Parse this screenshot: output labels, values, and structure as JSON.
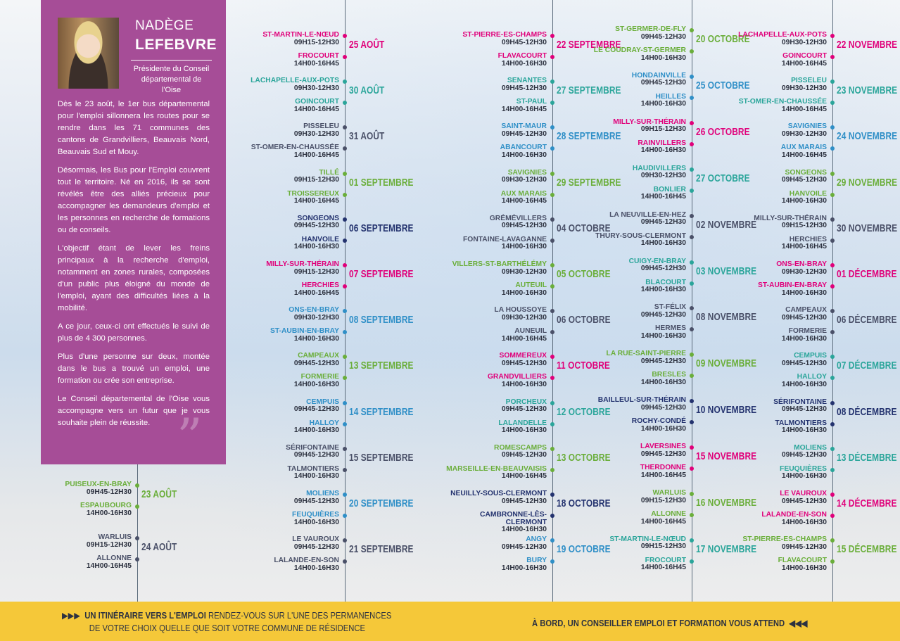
{
  "intro": {
    "first_name": "NADÈGE",
    "last_name": "LEFEBVRE",
    "role": "Présidente du Conseil départemental de l'Oise",
    "paragraphs": [
      "Dès le 23 août, le 1er bus départemental pour l'emploi sillonnera les routes pour se rendre dans les 71 communes des cantons de Grandvilliers, Beauvais Nord, Beauvais Sud et Mouy.",
      "Désormais, les Bus pour l'Emploi couvrent tout le territoire. Né en 2016, ils se sont révélés être des alliés précieux pour accompagner les demandeurs d'emploi et les personnes en recherche de formations ou de conseils.",
      "L'objectif étant de lever les freins principaux à la recherche d'emploi, notamment en zones rurales, composées d'un public plus éloigné du monde de l'emploi, ayant des difficultés liées à la mobilité.",
      "A ce jour, ceux-ci ont effectués le suivi de plus de 4 300 personnes.",
      "Plus d'une personne sur deux, montée dans le bus a trouvé un emploi, une formation ou crée son entreprise.",
      "Le Conseil départemental de l'Oise vous accompagne vers un futur que je vous souhaite plein de réussite."
    ],
    "quote_mark": "”"
  },
  "colors": {
    "pink": "#e0007a",
    "green": "#6aae3a",
    "teal": "#2aa59a",
    "blue": "#2f8fc7",
    "slate": "#4a5068",
    "navy": "#23326e",
    "purple": "#a64d97",
    "yellow": "#f5c839"
  },
  "columns": [
    {
      "entries": [
        {
          "date": "23 AOÛT",
          "color": "green",
          "stops": [
            {
              "name": "PUISEUX-EN-BRAY",
              "hours": "09H45-12H30"
            },
            {
              "name": "ESPAUBOURG",
              "hours": "14H00-16H30"
            }
          ]
        },
        {
          "date": "24 AOÛT",
          "color": "slate",
          "stops": [
            {
              "name": "WARLUIS",
              "hours": "09H15-12H30"
            },
            {
              "name": "ALLONNE",
              "hours": "14H00-16H45"
            }
          ]
        }
      ]
    },
    {
      "entries": [
        {
          "date": "25 AOÛT",
          "color": "pink",
          "stops": [
            {
              "name": "ST-MARTIN-LE-NŒUD",
              "hours": "09H15-12H30"
            },
            {
              "name": "FROCOURT",
              "hours": "14H00-16H45"
            }
          ]
        },
        {
          "date": "30 AOÛT",
          "color": "teal",
          "stops": [
            {
              "name": "LACHAPELLE-AUX-POTS",
              "hours": "09H30-12H30"
            },
            {
              "name": "GOINCOURT",
              "hours": "14H00-16H45"
            }
          ]
        },
        {
          "date": "31 AOÛT",
          "color": "slate",
          "stops": [
            {
              "name": "PISSELEU",
              "hours": "09H30-12H30"
            },
            {
              "name": "ST-OMER-EN-CHAUSSÉE",
              "hours": "14H00-16H45"
            }
          ]
        },
        {
          "date": "01 SEPTEMBRE",
          "color": "green",
          "stops": [
            {
              "name": "TILLÉ",
              "hours": "09H15-12H30"
            },
            {
              "name": "TROISSEREUX",
              "hours": "14H00-16H45"
            }
          ]
        },
        {
          "date": "06 SEPTEMBRE",
          "color": "navy",
          "stops": [
            {
              "name": "SONGEONS",
              "hours": "09H45-12H30"
            },
            {
              "name": "HANVOILE",
              "hours": "14H00-16H30"
            }
          ]
        },
        {
          "date": "07 SEPTEMBRE",
          "color": "pink",
          "stops": [
            {
              "name": "MILLY-SUR-THÉRAIN",
              "hours": "09H15-12H30"
            },
            {
              "name": "HERCHIES",
              "hours": "14H00-16H45"
            }
          ]
        },
        {
          "date": "08 SEPTEMBRE",
          "color": "blue",
          "stops": [
            {
              "name": "ONS-EN-BRAY",
              "hours": "09H30-12H30"
            },
            {
              "name": "ST-AUBIN-EN-BRAY",
              "hours": "14H00-16H30"
            }
          ]
        },
        {
          "date": "13 SEPTEMBRE",
          "color": "green",
          "stops": [
            {
              "name": "CAMPEAUX",
              "hours": "09H45-12H30"
            },
            {
              "name": "FORMERIE",
              "hours": "14H00-16H30"
            }
          ]
        },
        {
          "date": "14 SEPTEMBRE",
          "color": "blue",
          "stops": [
            {
              "name": "CEMPUIS",
              "hours": "09H45-12H30"
            },
            {
              "name": "HALLOY",
              "hours": "14H00-16H30"
            }
          ]
        },
        {
          "date": "15 SEPTEMBRE",
          "color": "slate",
          "stops": [
            {
              "name": "SÉRIFONTAINE",
              "hours": "09H45-12H30"
            },
            {
              "name": "TALMONTIERS",
              "hours": "14H00-16H30"
            }
          ]
        },
        {
          "date": "20 SEPTEMBRE",
          "color": "blue",
          "stops": [
            {
              "name": "MOLIENS",
              "hours": "09H45-12H30"
            },
            {
              "name": "FEUQUIÈRES",
              "hours": "14H00-16H30"
            }
          ]
        },
        {
          "date": "21 SEPTEMBRE",
          "color": "slate",
          "stops": [
            {
              "name": "LE VAUROUX",
              "hours": "09H45-12H30"
            },
            {
              "name": "LALANDE-EN-SON",
              "hours": "14H00-16H30"
            }
          ]
        }
      ]
    },
    {
      "entries": [
        {
          "date": "22 SEPTEMBRE",
          "color": "pink",
          "stops": [
            {
              "name": "ST-PIERRE-ES-CHAMPS",
              "hours": "09H45-12H30"
            },
            {
              "name": "FLAVACOURT",
              "hours": "14H00-16H30"
            }
          ]
        },
        {
          "date": "27 SEPTEMBRE",
          "color": "teal",
          "stops": [
            {
              "name": "SENANTES",
              "hours": "09H45-12H30"
            },
            {
              "name": "ST-PAUL",
              "hours": "14H00-16H45"
            }
          ]
        },
        {
          "date": "28 SEPTEMBRE",
          "color": "blue",
          "stops": [
            {
              "name": "SAINT-MAUR",
              "hours": "09H45-12H30"
            },
            {
              "name": "ABANCOURT",
              "hours": "14H00-16H30"
            }
          ]
        },
        {
          "date": "29 SEPTEMBRE",
          "color": "green",
          "stops": [
            {
              "name": "SAVIGNIES",
              "hours": "09H30-12H30"
            },
            {
              "name": "AUX MARAIS",
              "hours": "14H00-16H45"
            }
          ]
        },
        {
          "date": "04 OCTOBRE",
          "color": "slate",
          "stops": [
            {
              "name": "GRÉMÉVILLERS",
              "hours": "09H45-12H30"
            },
            {
              "name": "FONTAINE-LAVAGANNE",
              "hours": "14H00-16H30"
            }
          ]
        },
        {
          "date": "05 OCTOBRE",
          "color": "green",
          "stops": [
            {
              "name": "VILLERS-ST-BARTHÉLÉMY",
              "hours": "09H30-12H30"
            },
            {
              "name": "AUTEUIL",
              "hours": "14H00-16H30"
            }
          ]
        },
        {
          "date": "06 OCTOBRE",
          "color": "slate",
          "stops": [
            {
              "name": "LA HOUSSOYE",
              "hours": "09H30-12H30"
            },
            {
              "name": "AUNEUIL",
              "hours": "14H00-16H45"
            }
          ]
        },
        {
          "date": "11 OCTOBRE",
          "color": "pink",
          "stops": [
            {
              "name": "SOMMEREUX",
              "hours": "09H45-12H30"
            },
            {
              "name": "GRANDVILLIERS",
              "hours": "14H00-16H30"
            }
          ]
        },
        {
          "date": "12 OCTOBRE",
          "color": "teal",
          "stops": [
            {
              "name": "PORCHEUX",
              "hours": "09H45-12H30"
            },
            {
              "name": "LALANDELLE",
              "hours": "14H00-16H30"
            }
          ]
        },
        {
          "date": "13 OCTOBRE",
          "color": "green",
          "stops": [
            {
              "name": "ROMESCAMPS",
              "hours": "09H45-12H30"
            },
            {
              "name": "MARSEILLE-EN-BEAUVAISIS",
              "hours": "14H00-16H45"
            }
          ]
        },
        {
          "date": "18 OCTOBRE",
          "color": "navy",
          "stops": [
            {
              "name": "NEUILLY-SOUS-CLERMONT",
              "hours": "09H45-12H30"
            },
            {
              "name": "CAMBRONNE-LÈS-CLERMONT",
              "hours": "14H00-16H30"
            }
          ]
        },
        {
          "date": "19 OCTOBRE",
          "color": "blue",
          "stops": [
            {
              "name": "ANGY",
              "hours": "09H45-12H30"
            },
            {
              "name": "BURY",
              "hours": "14H00-16H30"
            }
          ]
        }
      ]
    },
    {
      "entries": [
        {
          "date": "20 OCTOBRE",
          "color": "green",
          "stops": [
            {
              "name": "ST-GERMER-DE-FLY",
              "hours": "09H45-12H30"
            },
            {
              "name": "LE COUDRAY-ST-GERMER",
              "hours": "14H00-16H30"
            }
          ]
        },
        {
          "date": "25 OCTOBRE",
          "color": "blue",
          "stops": [
            {
              "name": "HONDAINVILLE",
              "hours": "09H45-12H30"
            },
            {
              "name": "HEILLES",
              "hours": "14H00-16H30"
            }
          ]
        },
        {
          "date": "26 OCTOBRE",
          "color": "pink",
          "stops": [
            {
              "name": "MILLY-SUR-THÉRAIN",
              "hours": "09H15-12H30"
            },
            {
              "name": "RAINVILLERS",
              "hours": "14H00-16H30"
            }
          ]
        },
        {
          "date": "27 OCTOBRE",
          "color": "teal",
          "stops": [
            {
              "name": "HAUDIVILLERS",
              "hours": "09H30-12H30"
            },
            {
              "name": "BONLIER",
              "hours": "14H00-16H45"
            }
          ]
        },
        {
          "date": "02 NOVEMBRE",
          "color": "slate",
          "stops": [
            {
              "name": "LA NEUVILLE-EN-HEZ",
              "hours": "09H45-12H30"
            },
            {
              "name": "THURY-SOUS-CLERMONT",
              "hours": "14H00-16H30"
            }
          ]
        },
        {
          "date": "03 NOVEMBRE",
          "color": "teal",
          "stops": [
            {
              "name": "CUIGY-EN-BRAY",
              "hours": "09H45-12H30"
            },
            {
              "name": "BLACOURT",
              "hours": "14H00-16H30"
            }
          ]
        },
        {
          "date": "08 NOVEMBRE",
          "color": "slate",
          "stops": [
            {
              "name": "ST-FÉLIX",
              "hours": "09H45-12H30"
            },
            {
              "name": "HERMES",
              "hours": "14H00-16H30"
            }
          ]
        },
        {
          "date": "09 NOVEMBRE",
          "color": "green",
          "stops": [
            {
              "name": "LA RUE-SAINT-PIERRE",
              "hours": "09H45-12H30"
            },
            {
              "name": "BRESLES",
              "hours": "14H00-16H30"
            }
          ]
        },
        {
          "date": "10 NOVEMBRE",
          "color": "navy",
          "stops": [
            {
              "name": "BAILLEUL-SUR-THÉRAIN",
              "hours": "09H45-12H30"
            },
            {
              "name": "ROCHY-CONDÉ",
              "hours": "14H00-16H30"
            }
          ]
        },
        {
          "date": "15 NOVEMBRE",
          "color": "pink",
          "stops": [
            {
              "name": "LAVERSINES",
              "hours": "09H45-12H30"
            },
            {
              "name": "THERDONNE",
              "hours": "14H00-16H45"
            }
          ]
        },
        {
          "date": "16 NOVEMBRE",
          "color": "green",
          "stops": [
            {
              "name": "WARLUIS",
              "hours": "09H15-12H30"
            },
            {
              "name": "ALLONNE",
              "hours": "14H00-16H45"
            }
          ]
        },
        {
          "date": "17 NOVEMBRE",
          "color": "teal",
          "stops": [
            {
              "name": "ST-MARTIN-LE-NŒUD",
              "hours": "09H15-12H30"
            },
            {
              "name": "FROCOURT",
              "hours": "14H00-16H45"
            }
          ]
        }
      ]
    },
    {
      "entries": [
        {
          "date": "22 NOVEMBRE",
          "color": "pink",
          "stops": [
            {
              "name": "LACHAPELLE-AUX-POTS",
              "hours": "09H30-12H30"
            },
            {
              "name": "GOINCOURT",
              "hours": "14H00-16H45"
            }
          ]
        },
        {
          "date": "23 NOVEMBRE",
          "color": "teal",
          "stops": [
            {
              "name": "PISSELEU",
              "hours": "09H30-12H30"
            },
            {
              "name": "ST-OMER-EN-CHAUSSÉE",
              "hours": "14H00-16H45"
            }
          ]
        },
        {
          "date": "24 NOVEMBRE",
          "color": "blue",
          "stops": [
            {
              "name": "SAVIGNIES",
              "hours": "09H30-12H30"
            },
            {
              "name": "AUX MARAIS",
              "hours": "14H00-16H45"
            }
          ]
        },
        {
          "date": "29 NOVEMBRE",
          "color": "green",
          "stops": [
            {
              "name": "SONGEONS",
              "hours": "09H45-12H30"
            },
            {
              "name": "HANVOILE",
              "hours": "14H00-16H30"
            }
          ]
        },
        {
          "date": "30 NOVEMBRE",
          "color": "slate",
          "stops": [
            {
              "name": "MILLY-SUR-THÉRAIN",
              "hours": "09H15-12H30"
            },
            {
              "name": "HERCHIES",
              "hours": "14H00-16H45"
            }
          ]
        },
        {
          "date": "01 DÉCEMBRE",
          "color": "pink",
          "stops": [
            {
              "name": "ONS-EN-BRAY",
              "hours": "09H30-12H30"
            },
            {
              "name": "ST-AUBIN-EN-BRAY",
              "hours": "14H00-16H30"
            }
          ]
        },
        {
          "date": "06 DÉCEMBRE",
          "color": "slate",
          "stops": [
            {
              "name": "CAMPEAUX",
              "hours": "09H45-12H30"
            },
            {
              "name": "FORMERIE",
              "hours": "14H00-16H30"
            }
          ]
        },
        {
          "date": "07 DÉCEMBRE",
          "color": "teal",
          "stops": [
            {
              "name": "CEMPUIS",
              "hours": "09H45-12H30"
            },
            {
              "name": "HALLOY",
              "hours": "14H00-16H30"
            }
          ]
        },
        {
          "date": "08 DÉCEMBRE",
          "color": "navy",
          "stops": [
            {
              "name": "SÉRIFONTAINE",
              "hours": "09H45-12H30"
            },
            {
              "name": "TALMONTIERS",
              "hours": "14H00-16H30"
            }
          ]
        },
        {
          "date": "13 DÉCEMBRE",
          "color": "teal",
          "stops": [
            {
              "name": "MOLIENS",
              "hours": "09H45-12H30"
            },
            {
              "name": "FEUQUIÈRES",
              "hours": "14H00-16H30"
            }
          ]
        },
        {
          "date": "14 DÉCEMBRE",
          "color": "pink",
          "stops": [
            {
              "name": "LE VAUROUX",
              "hours": "09H45-12H30"
            },
            {
              "name": "LALANDE-EN-SON",
              "hours": "14H00-16H30"
            }
          ]
        },
        {
          "date": "15 DÉCEMBRE",
          "color": "green",
          "stops": [
            {
              "name": "ST-PIERRE-ES-CHAMPS",
              "hours": "09H45-12H30"
            },
            {
              "name": "FLAVACOURT",
              "hours": "14H00-16H30"
            }
          ]
        }
      ]
    }
  ],
  "footer": {
    "left_arrows": "▶▶▶",
    "left_bold": "UN ITINÉRAIRE VERS L'EMPLOI",
    "left_text_1": " RENDEZ-VOUS SUR L'UNE DES PERMANENCES",
    "left_text_2": "DE VOTRE CHOIX  QUELLE QUE SOIT VOTRE COMMUNE DE RÉSIDENCE",
    "right_text": "À BORD, UN CONSEILLER EMPLOI ET FORMATION VOUS ATTEND",
    "right_arrows": "◀◀◀"
  }
}
